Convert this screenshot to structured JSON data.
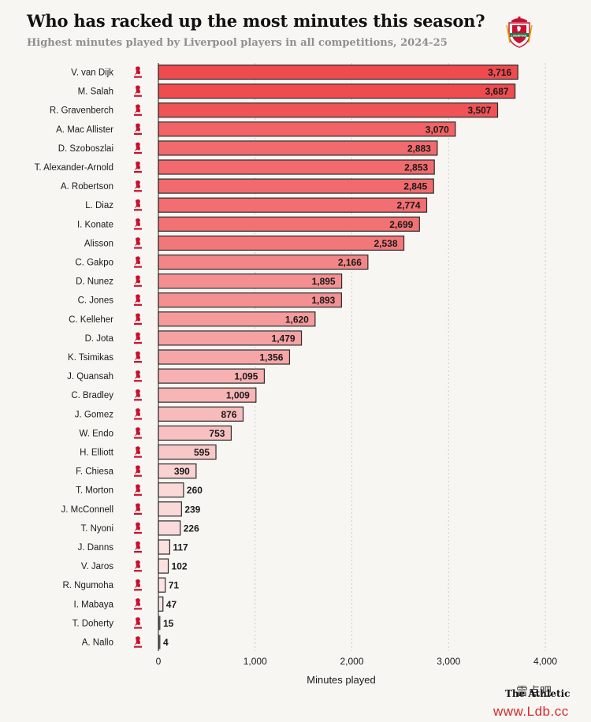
{
  "header": {
    "title": "Who has racked up the most minutes this season?",
    "subtitle": "Highest minutes played by Liverpool players in all competitions, 2024-25"
  },
  "logo": {
    "name": "liverpool-crest-icon",
    "text": "LIVERPOOL"
  },
  "credits": {
    "publisher": "The Athletic",
    "watermark_zh": "雷点吧",
    "watermark_url": "www.Ldb.cc"
  },
  "colors": {
    "bar_max": "#ef4b4f",
    "bar_min": "#fbe9e8",
    "bar_outline": "#2b2b2b",
    "small_bar": "#555555",
    "grid": "#c9c9c9",
    "player_icon": "#c8102e"
  },
  "icons": {
    "player_marker": "liver-bird-icon"
  },
  "chart_data": {
    "type": "bar",
    "orientation": "horizontal",
    "xlabel": "Minutes played",
    "xlim": [
      0,
      4000
    ],
    "xticks": [
      0,
      1000,
      2000,
      3000,
      4000
    ],
    "xtick_labels": [
      "0",
      "1,000",
      "2,000",
      "3,000",
      "4,000"
    ],
    "grid": true,
    "categories": [
      "V. van Dijk",
      "M. Salah",
      "R. Gravenberch",
      "A. Mac Allister",
      "D. Szoboszlai",
      "T. Alexander-Arnold",
      "A. Robertson",
      "L. Diaz",
      "I. Konate",
      "Alisson",
      "C. Gakpo",
      "D. Nunez",
      "C. Jones",
      "C. Kelleher",
      "D. Jota",
      "K. Tsimikas",
      "J. Quansah",
      "C. Bradley",
      "J. Gomez",
      "W. Endo",
      "H. Elliott",
      "F. Chiesa",
      "T. Morton",
      "J. McConnell",
      "T. Nyoni",
      "J. Danns",
      "V. Jaros",
      "R. Ngumoha",
      "I. Mabaya",
      "T. Doherty",
      "A. Nallo"
    ],
    "values": [
      3716,
      3687,
      3507,
      3070,
      2883,
      2853,
      2845,
      2774,
      2699,
      2538,
      2166,
      1895,
      1893,
      1620,
      1479,
      1356,
      1095,
      1009,
      876,
      753,
      595,
      390,
      260,
      239,
      226,
      117,
      102,
      71,
      47,
      15,
      4
    ],
    "value_labels": [
      "3,716",
      "3,687",
      "3,507",
      "3,070",
      "2,883",
      "2,853",
      "2,845",
      "2,774",
      "2,699",
      "2,538",
      "2,166",
      "1,895",
      "1,893",
      "1,620",
      "1,479",
      "1,356",
      "1,095",
      "1,009",
      "876",
      "753",
      "595",
      "390",
      "260",
      "239",
      "226",
      "117",
      "102",
      "71",
      "47",
      "15",
      "4"
    ]
  }
}
